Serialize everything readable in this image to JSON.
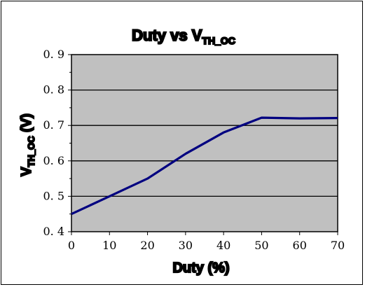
{
  "chart_data": {
    "type": "line",
    "title": "Duty  vs V",
    "title_subscript": "TH_OC",
    "xlabel": "Duty (%)",
    "ylabel": "V",
    "ylabel_subscript": "TH_OC",
    "ylabel_unit": " (V)",
    "x": [
      0,
      10,
      20,
      30,
      40,
      50,
      60,
      70
    ],
    "series": [
      {
        "values": [
          0.45,
          0.5,
          0.55,
          0.62,
          0.68,
          0.722,
          0.72,
          0.721
        ],
        "color": "#000080"
      }
    ],
    "xlim": [
      0,
      70
    ],
    "ylim": [
      0.4,
      0.9
    ],
    "x_ticks": [
      "0",
      "10",
      "20",
      "30",
      "40",
      "50",
      "60",
      "70"
    ],
    "y_ticks": [
      "0.4",
      "0.5",
      "0.6",
      "0.7",
      "0.8",
      "0.9"
    ],
    "grid": true,
    "plot_background": "#c0c0c0",
    "line_color": "#000080"
  }
}
